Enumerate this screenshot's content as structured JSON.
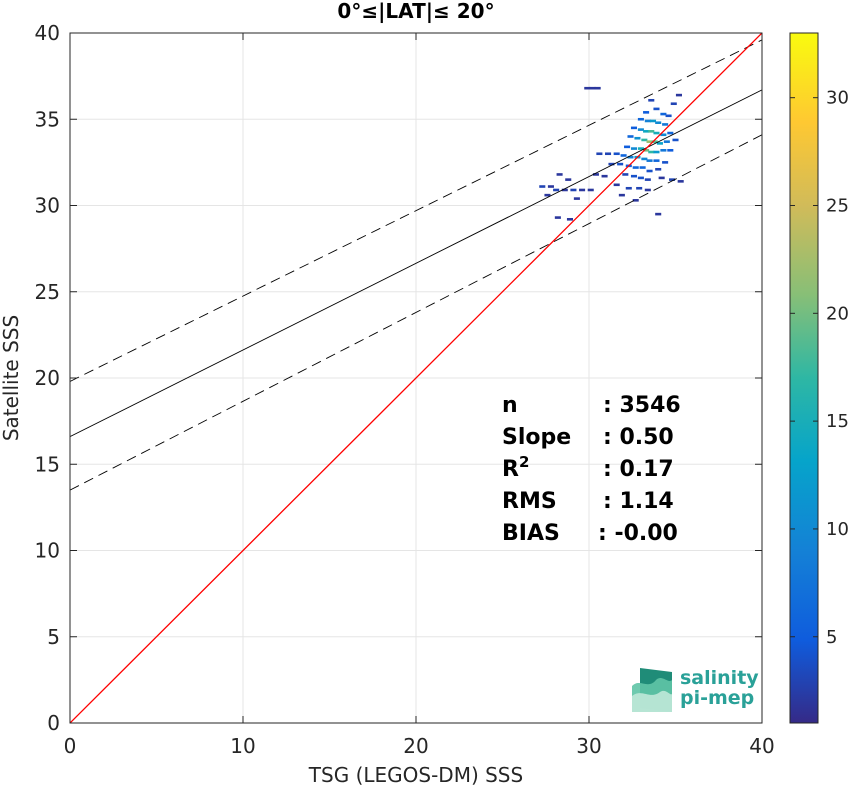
{
  "chart_data": {
    "type": "scatter",
    "title": "0°≤|LAT|≤ 20°",
    "xlabel": "TSG (LEGOS-DM) SSS",
    "ylabel": "Satellite SSS",
    "xlim": [
      0,
      40
    ],
    "ylim": [
      0,
      40
    ],
    "xticks": [
      0,
      10,
      20,
      30,
      40
    ],
    "yticks": [
      0,
      5,
      10,
      15,
      20,
      25,
      30,
      35,
      40
    ],
    "grid": true,
    "lines": {
      "identity": {
        "color": "#ff0000",
        "x": [
          0,
          40
        ],
        "y": [
          0,
          40
        ]
      },
      "fit": {
        "color": "#000000",
        "x": [
          0,
          40
        ],
        "y": [
          16.6,
          36.7
        ]
      },
      "fit_upper": {
        "color": "#000000",
        "dash": true,
        "x": [
          0,
          40
        ],
        "y": [
          19.8,
          39.6
        ]
      },
      "fit_lower": {
        "color": "#000000",
        "dash": true,
        "x": [
          0,
          40
        ],
        "y": [
          13.5,
          34.1
        ]
      }
    },
    "density_cells": [
      [
        29.9,
        36.8,
        2
      ],
      [
        30.2,
        36.8,
        2
      ],
      [
        30.5,
        36.8,
        2
      ],
      [
        33.6,
        36.1,
        3
      ],
      [
        35.2,
        36.4,
        2
      ],
      [
        34.9,
        35.9,
        3
      ],
      [
        33.3,
        35.4,
        5
      ],
      [
        33.9,
        35.6,
        4
      ],
      [
        34.3,
        35.3,
        6
      ],
      [
        34.6,
        35.2,
        4
      ],
      [
        33.0,
        35.0,
        6
      ],
      [
        33.4,
        34.9,
        9
      ],
      [
        33.7,
        34.9,
        12
      ],
      [
        34.0,
        34.8,
        10
      ],
      [
        34.4,
        34.7,
        8
      ],
      [
        32.6,
        34.5,
        5
      ],
      [
        33.0,
        34.4,
        10
      ],
      [
        33.3,
        34.3,
        14
      ],
      [
        33.6,
        34.3,
        18
      ],
      [
        33.9,
        34.2,
        15
      ],
      [
        34.3,
        34.1,
        10
      ],
      [
        34.7,
        34.2,
        6
      ],
      [
        32.4,
        34.0,
        6
      ],
      [
        32.8,
        33.9,
        11
      ],
      [
        33.2,
        33.8,
        17
      ],
      [
        33.5,
        33.7,
        22
      ],
      [
        33.8,
        33.7,
        19
      ],
      [
        34.1,
        33.6,
        13
      ],
      [
        34.5,
        33.7,
        8
      ],
      [
        35.0,
        33.8,
        4
      ],
      [
        32.2,
        33.4,
        5
      ],
      [
        32.6,
        33.3,
        10
      ],
      [
        33.0,
        33.3,
        15
      ],
      [
        33.3,
        33.2,
        20
      ],
      [
        33.6,
        33.1,
        17
      ],
      [
        33.9,
        33.1,
        12
      ],
      [
        34.3,
        33.2,
        8
      ],
      [
        34.7,
        33.2,
        5
      ],
      [
        31.6,
        33.0,
        4
      ],
      [
        32.0,
        32.9,
        6
      ],
      [
        32.4,
        32.8,
        9
      ],
      [
        32.8,
        32.8,
        12
      ],
      [
        33.2,
        32.7,
        10
      ],
      [
        33.5,
        32.6,
        8
      ],
      [
        33.9,
        32.6,
        6
      ],
      [
        34.4,
        32.5,
        4
      ],
      [
        30.6,
        33.0,
        3
      ],
      [
        31.1,
        33.0,
        3
      ],
      [
        31.3,
        32.4,
        3
      ],
      [
        31.8,
        32.4,
        4
      ],
      [
        32.3,
        32.3,
        5
      ],
      [
        32.7,
        32.2,
        6
      ],
      [
        33.1,
        32.2,
        6
      ],
      [
        33.5,
        32.0,
        4
      ],
      [
        34.0,
        32.1,
        3
      ],
      [
        32.1,
        31.8,
        3
      ],
      [
        32.6,
        31.7,
        4
      ],
      [
        33.0,
        31.6,
        4
      ],
      [
        33.4,
        31.5,
        3
      ],
      [
        34.2,
        31.6,
        2
      ],
      [
        34.8,
        31.5,
        3
      ],
      [
        35.3,
        31.4,
        2
      ],
      [
        28.3,
        31.8,
        2
      ],
      [
        28.8,
        31.5,
        2
      ],
      [
        31.6,
        31.2,
        2
      ],
      [
        32.3,
        31.0,
        3
      ],
      [
        32.9,
        31.0,
        3
      ],
      [
        33.4,
        30.9,
        2
      ],
      [
        27.3,
        31.1,
        3
      ],
      [
        27.8,
        31.1,
        2
      ],
      [
        28.1,
        30.9,
        3
      ],
      [
        28.6,
        30.9,
        2
      ],
      [
        29.1,
        30.9,
        3
      ],
      [
        29.6,
        30.9,
        2
      ],
      [
        30.1,
        30.9,
        2
      ],
      [
        27.6,
        30.6,
        2
      ],
      [
        29.3,
        30.4,
        2
      ],
      [
        28.2,
        29.3,
        2
      ],
      [
        28.9,
        29.2,
        2
      ],
      [
        34.0,
        29.5,
        2
      ],
      [
        30.4,
        31.8,
        2
      ],
      [
        30.9,
        31.7,
        2
      ],
      [
        31.9,
        30.6,
        2
      ],
      [
        32.7,
        30.3,
        2
      ]
    ],
    "colorbar": {
      "min": 1,
      "max": 33,
      "ticks": [
        5,
        10,
        15,
        20,
        25,
        30
      ],
      "colormap": "parula"
    },
    "stats": [
      {
        "label": "n",
        "value": ": 3546"
      },
      {
        "label": "Slope",
        "value": ": 0.50"
      },
      {
        "label": "R",
        "sup": "2",
        "value": ": 0.17"
      },
      {
        "label": "RMS",
        "value": ": 1.14"
      },
      {
        "label": "BIAS",
        "value": ": -0.00"
      }
    ]
  },
  "logo": {
    "line1": "salinity",
    "line2": "pi-mep",
    "color": "#2aa198"
  }
}
